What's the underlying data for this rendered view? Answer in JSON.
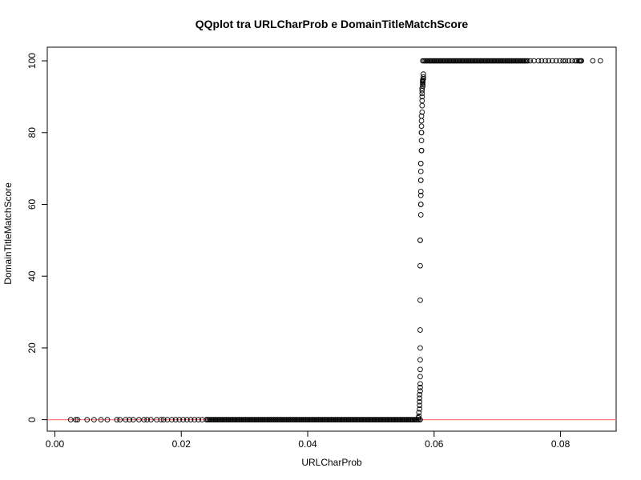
{
  "chart_data": {
    "type": "scatter",
    "title": "QQplot tra URLCharProb e DomainTitleMatchScore",
    "xlabel": "URLCharProb",
    "ylabel": "DomainTitleMatchScore",
    "xlim": [
      -0.0012,
      0.0888
    ],
    "ylim": [
      -3.2,
      103.8
    ],
    "x_ticks": [
      0.0,
      0.02,
      0.04,
      0.06,
      0.08
    ],
    "x_tick_labels": [
      "0.00",
      "0.02",
      "0.04",
      "0.06",
      "0.08"
    ],
    "y_ticks": [
      0,
      20,
      40,
      60,
      80,
      100
    ],
    "y_tick_labels": [
      "0",
      "20",
      "40",
      "60",
      "80",
      "100"
    ],
    "reference_line": {
      "y": 0,
      "color": "#ff8080"
    },
    "point_color": "#000000",
    "grid": false,
    "legend": "none",
    "sparse_zero_points_x": [
      0.0025,
      0.0033,
      0.0036,
      0.0051,
      0.0062,
      0.0073,
      0.0083,
      0.0098,
      0.0103,
      0.0112,
      0.0118,
      0.0124,
      0.0133,
      0.0141,
      0.0146,
      0.0152,
      0.0161,
      0.0168,
      0.0172,
      0.0178,
      0.0185,
      0.0191,
      0.0197,
      0.0203,
      0.0209,
      0.0215,
      0.0221,
      0.0227,
      0.0233,
      0.024
    ],
    "dense_zero_range": [
      0.024,
      0.0578
    ],
    "rising_points": [
      [
        0.0575,
        0.5
      ],
      [
        0.0576,
        1
      ],
      [
        0.0576,
        2
      ],
      [
        0.0577,
        3
      ],
      [
        0.0577,
        4
      ],
      [
        0.0577,
        5
      ],
      [
        0.0577,
        6
      ],
      [
        0.0577,
        7
      ],
      [
        0.0578,
        8
      ],
      [
        0.0578,
        9
      ],
      [
        0.0578,
        10
      ],
      [
        0.0578,
        12
      ],
      [
        0.0578,
        14
      ],
      [
        0.0578,
        16.7
      ],
      [
        0.0578,
        20
      ],
      [
        0.0578,
        25
      ],
      [
        0.0578,
        33.3
      ],
      [
        0.0578,
        42.9
      ],
      [
        0.0578,
        50
      ],
      [
        0.0578,
        50
      ],
      [
        0.0579,
        57.1
      ],
      [
        0.0579,
        60
      ],
      [
        0.0579,
        60
      ],
      [
        0.0579,
        62.5
      ],
      [
        0.0579,
        63.6
      ],
      [
        0.0579,
        66.7
      ],
      [
        0.0579,
        66.7
      ],
      [
        0.0579,
        69.2
      ],
      [
        0.0579,
        71.4
      ],
      [
        0.0579,
        71.4
      ],
      [
        0.058,
        75
      ],
      [
        0.058,
        75
      ],
      [
        0.058,
        77.8
      ],
      [
        0.058,
        80
      ],
      [
        0.058,
        80
      ],
      [
        0.058,
        81.8
      ],
      [
        0.058,
        83.3
      ],
      [
        0.058,
        84.6
      ],
      [
        0.0581,
        85.7
      ],
      [
        0.0581,
        87.5
      ],
      [
        0.0581,
        88.9
      ],
      [
        0.0581,
        90
      ],
      [
        0.0581,
        90.9
      ],
      [
        0.0581,
        91.7
      ],
      [
        0.0581,
        92.3
      ],
      [
        0.0582,
        92.9
      ],
      [
        0.0582,
        93.3
      ],
      [
        0.0582,
        93.8
      ],
      [
        0.0582,
        94.1
      ],
      [
        0.0582,
        94.4
      ],
      [
        0.0582,
        94.7
      ],
      [
        0.0583,
        95
      ],
      [
        0.0583,
        95.5
      ],
      [
        0.0583,
        96.3
      ]
    ],
    "dense_hundred_range": [
      0.0582,
      0.0748
    ],
    "sparse_hundred_points_x": [
      0.0752,
      0.0758,
      0.0765,
      0.077,
      0.0776,
      0.0781,
      0.0787,
      0.0793,
      0.0799,
      0.0804,
      0.0808,
      0.0813,
      0.0818,
      0.0823,
      0.0826,
      0.0829,
      0.0831,
      0.0832,
      0.0833,
      0.0851,
      0.0863
    ]
  }
}
